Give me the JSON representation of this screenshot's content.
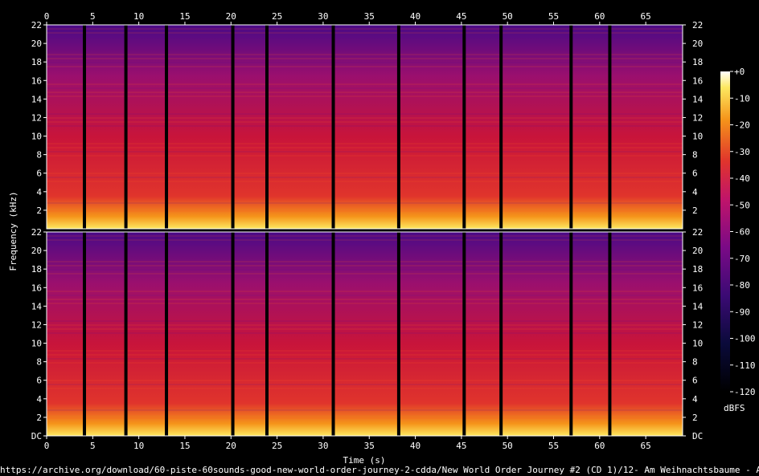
{
  "chart_data": {
    "type": "heatmap",
    "title": "",
    "xlabel": "Time (s)",
    "ylabel": "Frequency (kHz)",
    "colorbar_label": "dBFS",
    "source_path": "https://archive.org/download/60-piste-60sounds-good-new-world-order-journey-2-cdda/New World Order Journey #2 (CD 1)/12- Am Weihnachtsbaume - A.wav",
    "xlim": [
      0,
      69
    ],
    "ylim": [
      0,
      22
    ],
    "x_ticks": [
      "0",
      "5",
      "10",
      "15",
      "20",
      "25",
      "30",
      "35",
      "40",
      "45",
      "50",
      "55",
      "60",
      "65"
    ],
    "y_ticks": [
      "DC",
      "2",
      "4",
      "6",
      "8",
      "10",
      "12",
      "14",
      "16",
      "18",
      "20",
      "22"
    ],
    "colorbar_ticks": [
      "+0",
      "-10",
      "-20",
      "-30",
      "-40",
      "-50",
      "-60",
      "-70",
      "-80",
      "-90",
      "-100",
      "-110",
      "-120"
    ],
    "colorbar_range": [
      -120,
      0
    ],
    "channels": 2,
    "silence_gaps_s": [
      4.1,
      8.6,
      13.0,
      20.2,
      23.9,
      31.1,
      38.2,
      45.3,
      49.3,
      56.9,
      61.1
    ],
    "colors": {
      "background": "#000000",
      "low": "#000000",
      "mid": "#7a0a86",
      "high": "#e0342c",
      "peak": "#ffffff"
    }
  }
}
